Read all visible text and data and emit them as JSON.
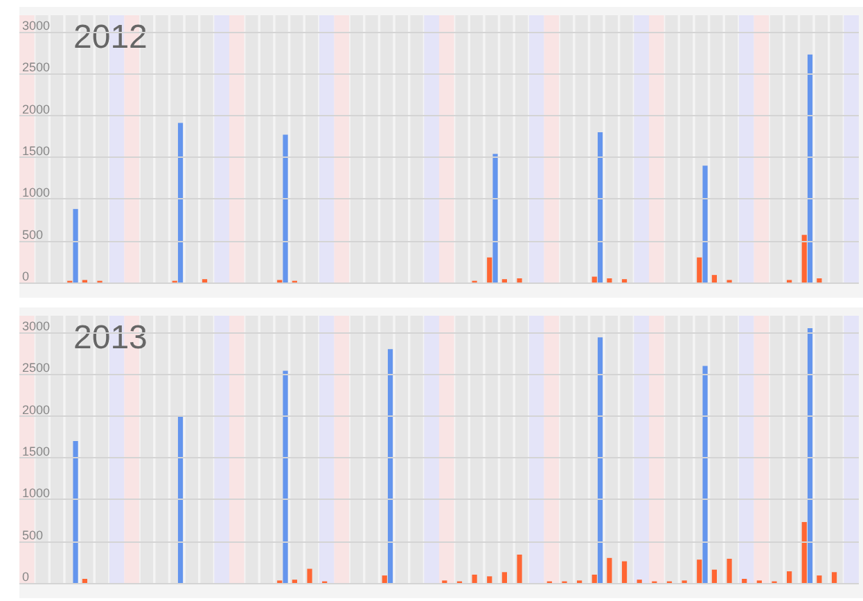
{
  "chart_data": [
    {
      "type": "bar",
      "title": "2012",
      "categories": [
        null,
        null,
        null,
        null,
        null,
        null,
        null,
        null,
        null,
        null,
        null,
        null,
        null,
        null,
        null,
        null,
        null,
        null,
        null,
        null,
        null,
        null,
        null,
        null,
        null,
        null,
        null,
        null,
        null,
        null,
        null,
        null,
        null,
        null,
        null,
        null,
        null,
        null,
        null,
        null,
        null,
        null,
        null,
        null,
        null,
        null,
        null,
        null,
        null,
        null,
        null,
        null,
        null,
        null,
        null,
        null
      ],
      "series": [
        {
          "color": "#ff6633",
          "values": [
            null,
            null,
            null,
            20,
            30,
            20,
            null,
            null,
            null,
            null,
            20,
            null,
            40,
            null,
            null,
            null,
            null,
            30,
            20,
            null,
            null,
            null,
            null,
            null,
            null,
            null,
            null,
            null,
            null,
            null,
            20,
            300,
            40,
            50,
            null,
            null,
            null,
            null,
            70,
            50,
            40,
            null,
            null,
            null,
            null,
            300,
            90,
            30,
            null,
            null,
            null,
            30,
            570,
            50,
            null,
            null
          ]
        },
        {
          "color": "#6495ed",
          "values": [
            null,
            null,
            null,
            880,
            null,
            null,
            null,
            null,
            null,
            null,
            1910,
            null,
            null,
            null,
            null,
            null,
            null,
            1770,
            null,
            null,
            null,
            null,
            null,
            null,
            null,
            null,
            null,
            null,
            null,
            null,
            null,
            1540,
            null,
            null,
            null,
            null,
            null,
            null,
            1800,
            null,
            null,
            null,
            null,
            null,
            null,
            1400,
            null,
            null,
            null,
            null,
            null,
            null,
            2730,
            null,
            null,
            null
          ]
        }
      ],
      "ylim": [
        0,
        3200
      ],
      "yticks": [
        0,
        500,
        1000,
        1500,
        2000,
        2500,
        3000
      ],
      "grid": "y",
      "tick_labels": "y"
    },
    {
      "type": "bar",
      "title": "2013",
      "categories": [
        null,
        null,
        null,
        null,
        null,
        null,
        null,
        null,
        null,
        null,
        null,
        null,
        null,
        null,
        null,
        null,
        null,
        null,
        null,
        null,
        null,
        null,
        null,
        null,
        null,
        null,
        null,
        null,
        null,
        null,
        null,
        null,
        null,
        null,
        null,
        null,
        null,
        null,
        null,
        null,
        null,
        null,
        null,
        null,
        null,
        null,
        null,
        null,
        null,
        null,
        null,
        null,
        null,
        null,
        null,
        null
      ],
      "series": [
        {
          "color": "#ff6633",
          "values": [
            null,
            null,
            null,
            null,
            50,
            null,
            null,
            null,
            null,
            null,
            null,
            null,
            null,
            null,
            null,
            null,
            null,
            30,
            40,
            170,
            20,
            null,
            null,
            null,
            90,
            null,
            null,
            null,
            30,
            20,
            100,
            80,
            130,
            340,
            null,
            20,
            20,
            30,
            100,
            300,
            260,
            40,
            20,
            20,
            30,
            280,
            160,
            290,
            50,
            30,
            20,
            140,
            730,
            90,
            130,
            null
          ]
        },
        {
          "color": "#6495ed",
          "values": [
            null,
            null,
            null,
            1700,
            null,
            null,
            null,
            null,
            null,
            null,
            1990,
            null,
            null,
            null,
            null,
            null,
            null,
            2540,
            null,
            null,
            null,
            null,
            null,
            null,
            2800,
            null,
            null,
            null,
            null,
            null,
            null,
            null,
            null,
            null,
            null,
            null,
            null,
            null,
            2940,
            null,
            null,
            null,
            null,
            null,
            null,
            2600,
            null,
            null,
            null,
            null,
            null,
            null,
            3050,
            null,
            null,
            null
          ]
        }
      ],
      "ylim": [
        0,
        3200
      ],
      "yticks": [
        0,
        500,
        1000,
        1500,
        2000,
        2500,
        3000
      ],
      "grid": "y",
      "tick_labels": "y"
    }
  ]
}
